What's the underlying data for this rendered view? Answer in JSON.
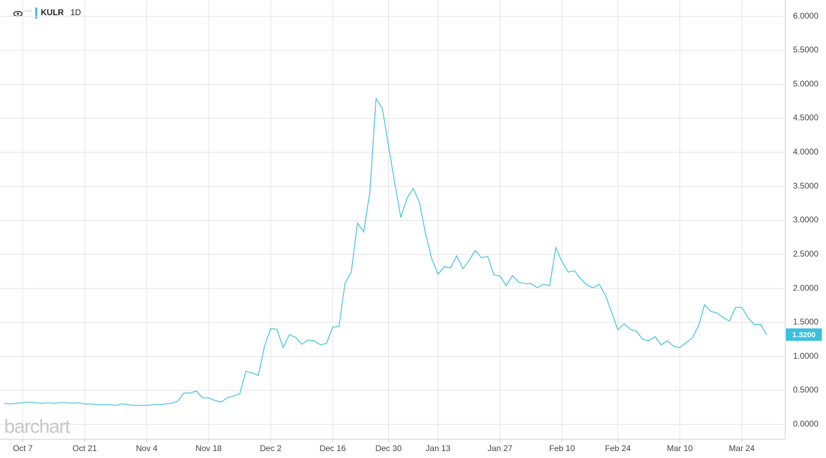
{
  "chart_data": {
    "type": "line",
    "interval": "1D",
    "watermark": "barchart",
    "categories": [
      null,
      null,
      null,
      "Oct 7",
      null,
      null,
      null,
      null,
      null,
      null,
      null,
      null,
      null,
      "Oct 21",
      null,
      null,
      null,
      null,
      null,
      null,
      null,
      null,
      null,
      "Nov 4",
      null,
      null,
      null,
      null,
      null,
      null,
      null,
      null,
      null,
      "Nov 18",
      null,
      null,
      null,
      null,
      null,
      null,
      null,
      null,
      null,
      "Dec 2",
      null,
      null,
      null,
      null,
      null,
      null,
      null,
      null,
      null,
      "Dec 16",
      null,
      null,
      null,
      null,
      null,
      null,
      null,
      null,
      "Dec 30",
      null,
      null,
      null,
      null,
      null,
      null,
      null,
      "Jan 13",
      null,
      null,
      null,
      null,
      null,
      null,
      null,
      null,
      null,
      "Jan 27",
      null,
      null,
      null,
      null,
      null,
      null,
      null,
      null,
      null,
      "Feb 10",
      null,
      null,
      null,
      null,
      null,
      null,
      null,
      null,
      "Feb 24",
      null,
      null,
      null,
      null,
      null,
      null,
      null,
      null,
      null,
      "Mar 10",
      null,
      null,
      null,
      null,
      null,
      null,
      null,
      null,
      null,
      "Mar 24",
      null,
      null,
      null,
      null
    ],
    "series": [
      {
        "name": "KULR",
        "color": "#3bbfdc",
        "values": [
          0.31,
          0.3,
          0.31,
          0.32,
          0.33,
          0.32,
          0.31,
          0.32,
          0.31,
          0.32,
          0.32,
          0.31,
          0.32,
          0.3,
          0.3,
          0.29,
          0.29,
          0.29,
          0.28,
          0.3,
          0.29,
          0.28,
          0.28,
          0.28,
          0.29,
          0.29,
          0.3,
          0.31,
          0.34,
          0.46,
          0.46,
          0.49,
          0.39,
          0.39,
          0.35,
          0.33,
          0.39,
          0.42,
          0.45,
          0.78,
          0.76,
          0.72,
          1.15,
          1.41,
          1.4,
          1.13,
          1.32,
          1.28,
          1.18,
          1.24,
          1.23,
          1.17,
          1.19,
          1.43,
          1.44,
          2.08,
          2.24,
          2.96,
          2.83,
          3.42,
          4.79,
          4.65,
          4.1,
          3.55,
          3.04,
          3.33,
          3.47,
          3.26,
          2.8,
          2.43,
          2.21,
          2.32,
          2.3,
          2.48,
          2.29,
          2.41,
          2.56,
          2.45,
          2.47,
          2.2,
          2.18,
          2.04,
          2.19,
          2.09,
          2.07,
          2.07,
          2.01,
          2.06,
          2.04,
          2.6,
          2.39,
          2.24,
          2.26,
          2.14,
          2.05,
          2.01,
          2.06,
          1.9,
          1.65,
          1.39,
          1.48,
          1.4,
          1.37,
          1.25,
          1.23,
          1.29,
          1.17,
          1.23,
          1.15,
          1.13,
          1.2,
          1.27,
          1.45,
          1.76,
          1.66,
          1.64,
          1.57,
          1.52,
          1.72,
          1.72,
          1.57,
          1.47,
          1.47,
          1.32
        ]
      }
    ],
    "price_marker": {
      "value": 1.32,
      "label": "1.3200"
    },
    "ylim": [
      -0.22,
      6.24
    ],
    "yticks": [
      {
        "value": 0,
        "label": "0.0000"
      },
      {
        "value": 0.5,
        "label": "0.5000"
      },
      {
        "value": 1,
        "label": "1.0000"
      },
      {
        "value": 1.5,
        "label": "1.5000"
      },
      {
        "value": 2,
        "label": "2.0000"
      },
      {
        "value": 2.5,
        "label": "2.5000"
      },
      {
        "value": 3,
        "label": "3.0000"
      },
      {
        "value": 3.5,
        "label": "3.5000"
      },
      {
        "value": 4,
        "label": "4.0000"
      },
      {
        "value": 4.5,
        "label": "4.5000"
      },
      {
        "value": 5,
        "label": "5.0000"
      },
      {
        "value": 5.5,
        "label": "5.5000"
      },
      {
        "value": 6,
        "label": "6.0000"
      }
    ],
    "grid": true
  }
}
